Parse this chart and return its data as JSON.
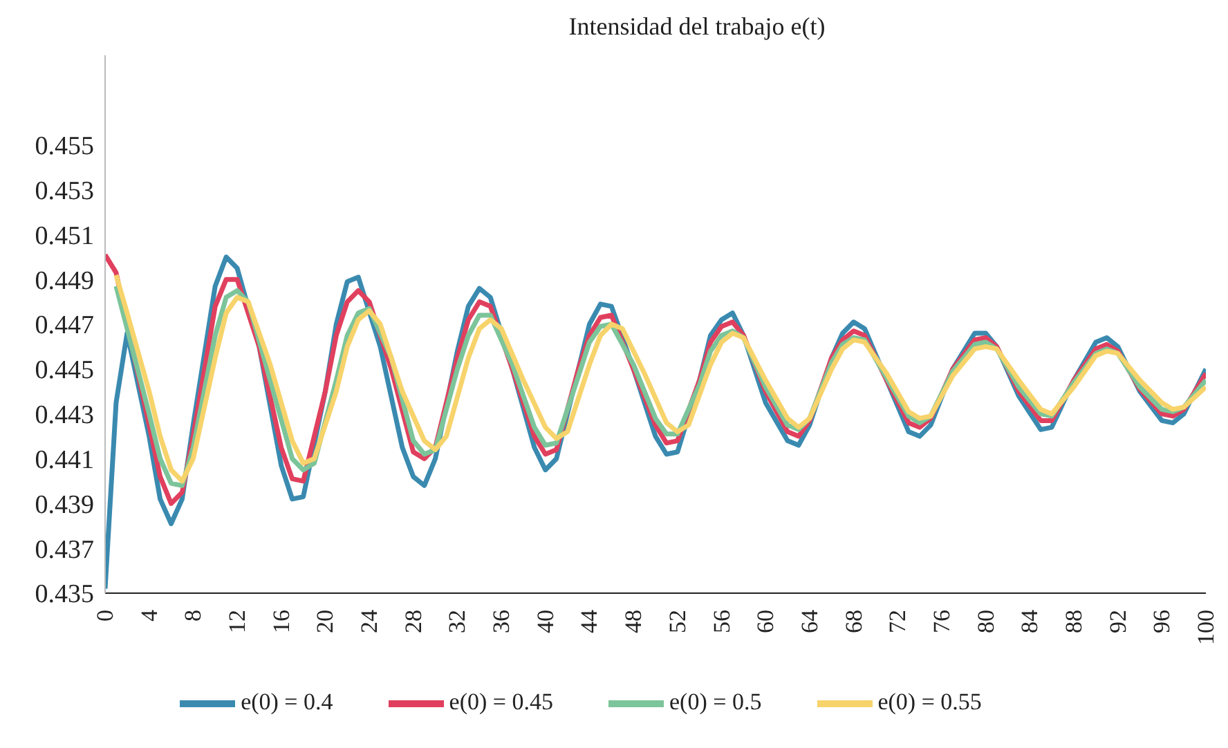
{
  "chart_data": {
    "type": "line",
    "title": "Intensidad del trabajo e(t)",
    "legend": "bottom",
    "grid": false,
    "marker": "none",
    "line_style": "solid",
    "xlim": [
      0,
      100
    ],
    "xticks": [
      0,
      4,
      8,
      12,
      16,
      20,
      24,
      28,
      32,
      36,
      40,
      44,
      48,
      52,
      56,
      60,
      64,
      68,
      72,
      76,
      80,
      84,
      88,
      92,
      96,
      100
    ],
    "ylim": [
      0.435,
      0.459
    ],
    "yticks": [
      0.435,
      0.437,
      0.439,
      0.441,
      0.443,
      0.445,
      0.447,
      0.449,
      0.451,
      0.453,
      0.455
    ],
    "series": [
      {
        "name": "e(0) = 0.4",
        "color": "#3a8ab0",
        "x": [
          0,
          1,
          2,
          4,
          5,
          6,
          7,
          8,
          10,
          11,
          12,
          14,
          16,
          17,
          18,
          20,
          21,
          22,
          23,
          25,
          27,
          28,
          29,
          30,
          32,
          33,
          34,
          35,
          37,
          39,
          40,
          41,
          43,
          44,
          45,
          46,
          48,
          50,
          51,
          52,
          54,
          55,
          56,
          57,
          58,
          60,
          62,
          63,
          64,
          66,
          67,
          68,
          69,
          71,
          73,
          74,
          75,
          77,
          79,
          80,
          81,
          83,
          85,
          86,
          88,
          90,
          91,
          92,
          94,
          96,
          97,
          98,
          100
        ],
        "values": [
          0.4352,
          0.4435,
          0.4466,
          0.442,
          0.4392,
          0.4381,
          0.4392,
          0.4425,
          0.4487,
          0.45,
          0.4495,
          0.446,
          0.4407,
          0.4392,
          0.4393,
          0.444,
          0.447,
          0.4489,
          0.4491,
          0.446,
          0.4415,
          0.4402,
          0.4398,
          0.441,
          0.4458,
          0.4478,
          0.4486,
          0.4482,
          0.445,
          0.4415,
          0.4405,
          0.441,
          0.445,
          0.447,
          0.4479,
          0.4478,
          0.445,
          0.442,
          0.4412,
          0.4413,
          0.4445,
          0.4465,
          0.4472,
          0.4475,
          0.4465,
          0.4435,
          0.4418,
          0.4416,
          0.4425,
          0.4455,
          0.4466,
          0.4471,
          0.4468,
          0.4445,
          0.4422,
          0.442,
          0.4425,
          0.445,
          0.4466,
          0.4466,
          0.446,
          0.4438,
          0.4423,
          0.4424,
          0.4445,
          0.4462,
          0.4464,
          0.446,
          0.444,
          0.4427,
          0.4426,
          0.443,
          0.445
        ]
      },
      {
        "name": "e(0) = 0.45",
        "color": "#e0405e",
        "x": [
          0,
          1,
          2,
          4,
          5,
          6,
          7,
          8,
          10,
          11,
          12,
          14,
          16,
          17,
          18,
          20,
          21,
          22,
          23,
          24,
          26,
          28,
          29,
          30,
          32,
          33,
          34,
          35,
          37,
          39,
          40,
          41,
          43,
          44,
          45,
          46,
          48,
          50,
          51,
          52,
          54,
          55,
          56,
          57,
          58,
          60,
          62,
          63,
          64,
          66,
          67,
          68,
          69,
          71,
          73,
          74,
          75,
          77,
          79,
          80,
          81,
          83,
          85,
          86,
          88,
          90,
          91,
          92,
          94,
          96,
          97,
          98,
          100
        ],
        "values": [
          0.4501,
          0.4493,
          0.447,
          0.4425,
          0.4402,
          0.439,
          0.4395,
          0.442,
          0.4478,
          0.449,
          0.449,
          0.446,
          0.4415,
          0.4401,
          0.44,
          0.444,
          0.4465,
          0.448,
          0.4485,
          0.448,
          0.445,
          0.4413,
          0.441,
          0.4415,
          0.4455,
          0.4472,
          0.448,
          0.4478,
          0.445,
          0.442,
          0.4412,
          0.4414,
          0.445,
          0.4465,
          0.4473,
          0.4474,
          0.445,
          0.4425,
          0.4417,
          0.4418,
          0.4445,
          0.4462,
          0.4469,
          0.4471,
          0.4465,
          0.444,
          0.4422,
          0.442,
          0.4427,
          0.4455,
          0.4463,
          0.4467,
          0.4465,
          0.4445,
          0.4426,
          0.4424,
          0.4428,
          0.445,
          0.4463,
          0.4464,
          0.446,
          0.444,
          0.4427,
          0.4427,
          0.4445,
          0.4459,
          0.4461,
          0.4458,
          0.4441,
          0.443,
          0.4429,
          0.4432,
          0.4448
        ]
      },
      {
        "name": "e(0) = 0.5",
        "color": "#7cc49a",
        "x": [
          1,
          2,
          4,
          5,
          6,
          7,
          8,
          10,
          11,
          12,
          13,
          15,
          17,
          18,
          19,
          21,
          22,
          23,
          24,
          26,
          28,
          29,
          30,
          32,
          33,
          34,
          35,
          37,
          39,
          40,
          41,
          43,
          44,
          45,
          46,
          48,
          50,
          51,
          52,
          54,
          55,
          56,
          57,
          58,
          60,
          62,
          63,
          64,
          66,
          67,
          68,
          69,
          71,
          73,
          74,
          75,
          77,
          79,
          80,
          81,
          83,
          85,
          86,
          88,
          90,
          91,
          92,
          94,
          96,
          97,
          98,
          100
        ],
        "values": [
          0.4487,
          0.4468,
          0.443,
          0.441,
          0.4399,
          0.4398,
          0.4415,
          0.4465,
          0.4482,
          0.4485,
          0.448,
          0.4445,
          0.441,
          0.4405,
          0.4408,
          0.4445,
          0.4465,
          0.4475,
          0.4477,
          0.4455,
          0.4418,
          0.4412,
          0.4414,
          0.445,
          0.4465,
          0.4474,
          0.4474,
          0.4452,
          0.4424,
          0.4416,
          0.4417,
          0.4447,
          0.4462,
          0.4469,
          0.447,
          0.4452,
          0.4428,
          0.4421,
          0.4421,
          0.4443,
          0.4458,
          0.4465,
          0.4467,
          0.4464,
          0.4442,
          0.4425,
          0.4423,
          0.4428,
          0.4453,
          0.4461,
          0.4464,
          0.4463,
          0.4446,
          0.4429,
          0.4426,
          0.4429,
          0.4449,
          0.4461,
          0.4462,
          0.4459,
          0.4442,
          0.443,
          0.4429,
          0.4444,
          0.4457,
          0.4459,
          0.4457,
          0.4442,
          0.4432,
          0.4431,
          0.4433,
          0.4445
        ]
      },
      {
        "name": "e(0) = 0.55",
        "color": "#f7d36b",
        "x": [
          1,
          2,
          4,
          5,
          6,
          7,
          8,
          10,
          11,
          12,
          13,
          15,
          17,
          18,
          19,
          21,
          22,
          23,
          24,
          25,
          27,
          29,
          30,
          31,
          33,
          34,
          35,
          36,
          38,
          40,
          41,
          42,
          44,
          45,
          46,
          47,
          49,
          51,
          52,
          53,
          55,
          56,
          57,
          58,
          60,
          62,
          63,
          64,
          66,
          67,
          68,
          69,
          71,
          73,
          74,
          75,
          77,
          79,
          80,
          81,
          83,
          85,
          86,
          88,
          90,
          91,
          92,
          94,
          96,
          97,
          98,
          100
        ],
        "values": [
          0.4492,
          0.4475,
          0.444,
          0.442,
          0.4405,
          0.44,
          0.441,
          0.4455,
          0.4475,
          0.4482,
          0.448,
          0.4452,
          0.4418,
          0.4408,
          0.441,
          0.444,
          0.446,
          0.4472,
          0.4476,
          0.447,
          0.444,
          0.4418,
          0.4414,
          0.442,
          0.4455,
          0.4468,
          0.4472,
          0.4468,
          0.4445,
          0.4424,
          0.4419,
          0.4422,
          0.4452,
          0.4465,
          0.447,
          0.4468,
          0.4448,
          0.4426,
          0.4422,
          0.4425,
          0.4452,
          0.4462,
          0.4466,
          0.4464,
          0.4445,
          0.4428,
          0.4424,
          0.4428,
          0.445,
          0.4459,
          0.4463,
          0.4462,
          0.4448,
          0.4431,
          0.4428,
          0.4429,
          0.4447,
          0.4459,
          0.446,
          0.4459,
          0.4445,
          0.4432,
          0.443,
          0.4442,
          0.4456,
          0.4458,
          0.4457,
          0.4445,
          0.4435,
          0.4432,
          0.4433,
          0.4442
        ]
      }
    ]
  }
}
